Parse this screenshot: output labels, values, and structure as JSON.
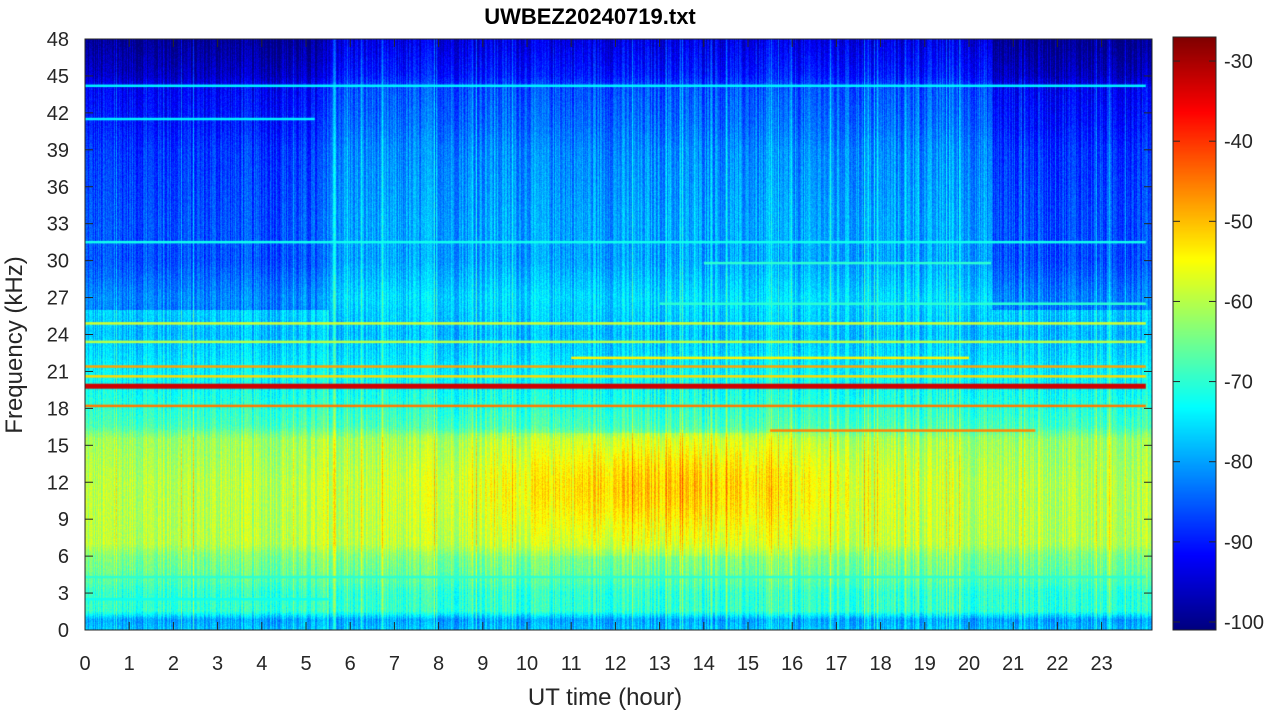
{
  "chart_data": {
    "type": "heatmap",
    "title": "UWBEZ20240719.txt",
    "xlabel": "UT time (hour)",
    "ylabel": "Frequency (kHz)",
    "x_ticks": [
      0,
      1,
      2,
      3,
      4,
      5,
      6,
      7,
      8,
      9,
      10,
      11,
      12,
      13,
      14,
      15,
      16,
      17,
      18,
      19,
      20,
      21,
      22,
      23
    ],
    "y_ticks": [
      0,
      3,
      6,
      9,
      12,
      15,
      18,
      21,
      24,
      27,
      30,
      33,
      36,
      39,
      42,
      45,
      48
    ],
    "xlim": [
      0,
      24
    ],
    "ylim": [
      0,
      48
    ],
    "colorbar": {
      "ticks": [
        -30,
        -40,
        -50,
        -60,
        -70,
        -80,
        -90,
        -100
      ],
      "range": [
        -101,
        -27
      ],
      "colormap": "jet"
    },
    "background_profile_db": [
      [
        0,
        -78
      ],
      [
        0.8,
        -80
      ],
      [
        1.5,
        -70
      ],
      [
        3,
        -70
      ],
      [
        4.5,
        -66
      ],
      [
        6,
        -64
      ],
      [
        7,
        -60
      ],
      [
        9,
        -60
      ],
      [
        12,
        -60
      ],
      [
        15.5,
        -62
      ],
      [
        16.5,
        -68
      ],
      [
        19,
        -72
      ],
      [
        21,
        -74
      ],
      [
        24,
        -78
      ],
      [
        27,
        -76
      ],
      [
        30,
        -80
      ],
      [
        33,
        -80
      ],
      [
        39,
        -82
      ],
      [
        41,
        -84
      ],
      [
        44,
        -86
      ],
      [
        45,
        -90
      ],
      [
        48,
        -94
      ]
    ],
    "daytime_enhancement": {
      "hour_range": [
        8.5,
        17.5
      ],
      "freq_range_khz": [
        6,
        16
      ],
      "peak_db": -50
    },
    "narrowband_lines": [
      {
        "freq_khz": 19.8,
        "db": -33,
        "hour_range": [
          0,
          24
        ]
      },
      {
        "freq_khz": 18.2,
        "db": -45,
        "hour_range": [
          0,
          24
        ]
      },
      {
        "freq_khz": 21.4,
        "db": -48,
        "hour_range": [
          0,
          24
        ]
      },
      {
        "freq_khz": 20.6,
        "db": -52,
        "hour_range": [
          0,
          24
        ]
      },
      {
        "freq_khz": 24.9,
        "db": -58,
        "hour_range": [
          0,
          24
        ]
      },
      {
        "freq_khz": 23.4,
        "db": -60,
        "hour_range": [
          0,
          24
        ]
      },
      {
        "freq_khz": 22.1,
        "db": -54,
        "hour_range": [
          11,
          20
        ]
      },
      {
        "freq_khz": 16.2,
        "db": -46,
        "hour_range": [
          15.5,
          21.5
        ]
      },
      {
        "freq_khz": 44.2,
        "db": -74,
        "hour_range": [
          0,
          24
        ]
      },
      {
        "freq_khz": 41.5,
        "db": -74,
        "hour_range": [
          0,
          5.2
        ]
      },
      {
        "freq_khz": 31.5,
        "db": -72,
        "hour_range": [
          0,
          24
        ]
      },
      {
        "freq_khz": 29.8,
        "db": -70,
        "hour_range": [
          14,
          20.5
        ]
      },
      {
        "freq_khz": 26.5,
        "db": -70,
        "hour_range": [
          13,
          24
        ]
      },
      {
        "freq_khz": 4.3,
        "db": -70,
        "hour_range": [
          0,
          24
        ]
      },
      {
        "freq_khz": 2.5,
        "db": -72,
        "hour_range": [
          0,
          5.5
        ]
      }
    ]
  }
}
